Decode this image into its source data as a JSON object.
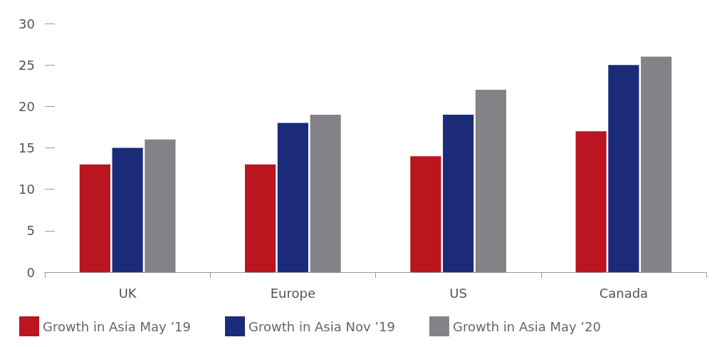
{
  "chart_data": {
    "type": "bar",
    "categories": [
      "UK",
      "Europe",
      "US",
      "Canada"
    ],
    "series": [
      {
        "name": "Growth in Asia May ’19",
        "color": "#bb1520",
        "values": [
          13,
          13,
          14,
          17
        ]
      },
      {
        "name": "Growth in Asia Nov ’19",
        "color": "#1b2b7a",
        "values": [
          15,
          18,
          19,
          25
        ]
      },
      {
        "name": "Growth in Asia May ’20",
        "color": "#838387",
        "values": [
          16,
          19,
          22,
          26
        ]
      }
    ],
    "ylim": [
      0,
      30
    ],
    "yticks": [
      0,
      5,
      10,
      15,
      20,
      25,
      30
    ],
    "grid": false,
    "legend": "bottom left"
  }
}
